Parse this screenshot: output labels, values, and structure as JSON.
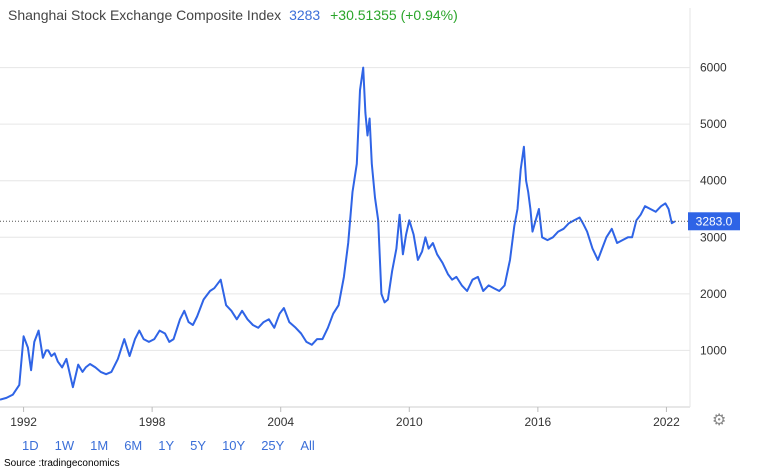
{
  "header": {
    "title": "Shanghai Stock Exchange Composite Index",
    "price": "3283",
    "change": "+30.51355 (+0.94%)"
  },
  "colors": {
    "line": "#2f64e6",
    "grid": "#e6e6e6",
    "change_positive": "#2aa52a",
    "badge": "#2f64e6"
  },
  "range_buttons": [
    "1D",
    "1W",
    "1M",
    "6M",
    "1Y",
    "5Y",
    "10Y",
    "25Y",
    "All"
  ],
  "selected_range": "All",
  "icons": {
    "settings": "gear-icon"
  },
  "source": "Source :tradingeconomics",
  "chart_data": {
    "type": "line",
    "title": "Shanghai Stock Exchange Composite Index",
    "xlabel": "",
    "ylabel": "",
    "xlim": [
      1990.9,
      2023.1
    ],
    "ylim": [
      0,
      6700
    ],
    "x_ticks": [
      1992,
      1998,
      2004,
      2010,
      2016,
      2022
    ],
    "y_ticks": [
      1000,
      2000,
      3000,
      4000,
      5000,
      6000
    ],
    "grid": true,
    "y_axis_position": "right",
    "last_value_label": "3283.0",
    "last_value": 3283,
    "series": [
      {
        "x": [
          1990.9,
          1991.2,
          1991.5,
          1991.8,
          1992.0,
          1992.2,
          1992.35,
          1992.5,
          1992.7,
          1992.9,
          1993.05,
          1993.15,
          1993.3,
          1993.45,
          1993.6,
          1993.8,
          1994.0,
          1994.3,
          1994.55,
          1994.75,
          1994.9,
          1995.1,
          1995.35,
          1995.6,
          1995.85,
          1996.1,
          1996.4,
          1996.7,
          1996.95,
          1997.2,
          1997.4,
          1997.6,
          1997.85,
          1998.1,
          1998.35,
          1998.6,
          1998.8,
          1999.0,
          1999.3,
          1999.5,
          1999.7,
          1999.9,
          2000.1,
          2000.4,
          2000.7,
          2000.9,
          2001.2,
          2001.45,
          2001.7,
          2001.95,
          2002.2,
          2002.45,
          2002.7,
          2002.95,
          2003.2,
          2003.45,
          2003.7,
          2003.95,
          2004.15,
          2004.4,
          2004.7,
          2004.95,
          2005.2,
          2005.45,
          2005.7,
          2005.95,
          2006.2,
          2006.45,
          2006.7,
          2006.95,
          2007.15,
          2007.35,
          2007.55,
          2007.7,
          2007.85,
          2007.95,
          2008.05,
          2008.15,
          2008.25,
          2008.4,
          2008.55,
          2008.7,
          2008.85,
          2009.0,
          2009.2,
          2009.4,
          2009.55,
          2009.7,
          2009.85,
          2010.0,
          2010.2,
          2010.4,
          2010.6,
          2010.75,
          2010.9,
          2011.1,
          2011.3,
          2011.55,
          2011.8,
          2012.0,
          2012.2,
          2012.45,
          2012.7,
          2012.95,
          2013.2,
          2013.45,
          2013.7,
          2013.95,
          2014.2,
          2014.45,
          2014.7,
          2014.9,
          2015.05,
          2015.2,
          2015.35,
          2015.45,
          2015.55,
          2015.65,
          2015.75,
          2015.9,
          2016.05,
          2016.2,
          2016.45,
          2016.7,
          2016.95,
          2017.2,
          2017.45,
          2017.7,
          2017.95,
          2018.1,
          2018.3,
          2018.55,
          2018.8,
          2019.0,
          2019.2,
          2019.45,
          2019.7,
          2019.95,
          2020.2,
          2020.4,
          2020.6,
          2020.8,
          2021.0,
          2021.25,
          2021.5,
          2021.75,
          2021.95,
          2022.1,
          2022.25,
          2022.4
        ],
        "y": [
          130,
          160,
          220,
          390,
          1250,
          1050,
          650,
          1150,
          1350,
          870,
          1000,
          1000,
          900,
          950,
          800,
          700,
          850,
          350,
          750,
          620,
          700,
          760,
          700,
          620,
          580,
          620,
          850,
          1200,
          900,
          1200,
          1350,
          1200,
          1150,
          1200,
          1350,
          1300,
          1150,
          1200,
          1550,
          1700,
          1500,
          1450,
          1600,
          1900,
          2050,
          2100,
          2250,
          1800,
          1700,
          1550,
          1700,
          1550,
          1450,
          1400,
          1500,
          1550,
          1400,
          1650,
          1750,
          1500,
          1400,
          1300,
          1150,
          1100,
          1200,
          1200,
          1400,
          1650,
          1800,
          2300,
          2900,
          3800,
          4300,
          5600,
          6000,
          5200,
          4800,
          5100,
          4300,
          3700,
          3300,
          2000,
          1850,
          1900,
          2400,
          2800,
          3400,
          2700,
          3050,
          3300,
          3050,
          2600,
          2750,
          3000,
          2800,
          2900,
          2700,
          2550,
          2350,
          2250,
          2300,
          2150,
          2050,
          2250,
          2300,
          2050,
          2150,
          2100,
          2050,
          2150,
          2600,
          3200,
          3500,
          4200,
          4600,
          4000,
          3800,
          3500,
          3100,
          3300,
          3500,
          3000,
          2950,
          3000,
          3100,
          3150,
          3250,
          3300,
          3350,
          3250,
          3100,
          2800,
          2600,
          2800,
          3000,
          3150,
          2900,
          2950,
          3000,
          3000,
          3300,
          3400,
          3550,
          3500,
          3450,
          3550,
          3600,
          3500,
          3250,
          3283
        ]
      }
    ]
  }
}
